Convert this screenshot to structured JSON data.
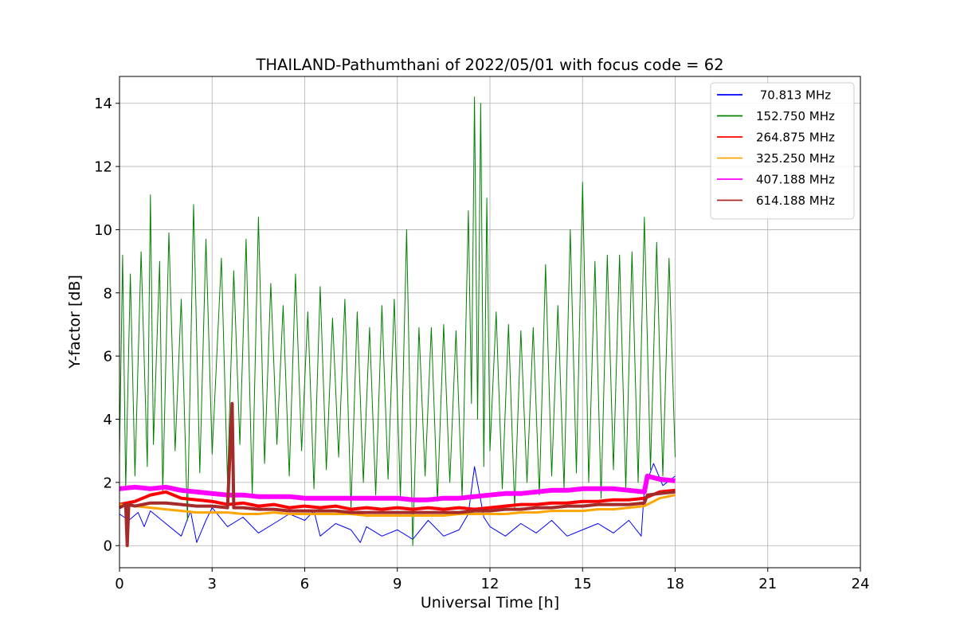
{
  "chart_data": {
    "type": "line",
    "title": "THAILAND-Pathumthani of 2022/05/01 with focus code = 62",
    "xlabel": "Universal Time [h]",
    "ylabel": "Y-factor [dB]",
    "xlim": [
      0,
      24
    ],
    "ylim": [
      -0.7,
      14.85
    ],
    "xticks": [
      0,
      3,
      6,
      9,
      12,
      15,
      18,
      21,
      24
    ],
    "yticks": [
      0,
      2,
      4,
      6,
      8,
      10,
      12,
      14
    ],
    "grid": true,
    "legend_position": "top-right",
    "series": [
      {
        "name": " 70.813 MHz",
        "color": "#0000ff",
        "stroke_width": 1,
        "points": [
          [
            0.0,
            1.0
          ],
          [
            0.3,
            0.8
          ],
          [
            0.6,
            1.05
          ],
          [
            0.8,
            0.6
          ],
          [
            1.0,
            1.1
          ],
          [
            1.5,
            0.7
          ],
          [
            2.0,
            0.3
          ],
          [
            2.3,
            1.1
          ],
          [
            2.5,
            0.1
          ],
          [
            2.8,
            0.8
          ],
          [
            3.0,
            1.2
          ],
          [
            3.5,
            0.6
          ],
          [
            4.0,
            0.9
          ],
          [
            4.5,
            0.4
          ],
          [
            5.0,
            0.7
          ],
          [
            5.5,
            1.0
          ],
          [
            6.0,
            0.8
          ],
          [
            6.3,
            1.1
          ],
          [
            6.5,
            0.3
          ],
          [
            7.0,
            0.7
          ],
          [
            7.5,
            0.5
          ],
          [
            7.8,
            0.1
          ],
          [
            8.0,
            0.6
          ],
          [
            8.5,
            0.3
          ],
          [
            9.0,
            0.5
          ],
          [
            9.5,
            0.2
          ],
          [
            10.0,
            0.8
          ],
          [
            10.5,
            0.3
          ],
          [
            11.0,
            0.5
          ],
          [
            11.3,
            1.0
          ],
          [
            11.5,
            2.5
          ],
          [
            11.8,
            0.9
          ],
          [
            12.0,
            0.6
          ],
          [
            12.5,
            0.3
          ],
          [
            13.0,
            0.7
          ],
          [
            13.5,
            0.4
          ],
          [
            14.0,
            0.8
          ],
          [
            14.5,
            0.3
          ],
          [
            15.0,
            0.5
          ],
          [
            15.5,
            0.7
          ],
          [
            16.0,
            0.4
          ],
          [
            16.5,
            0.8
          ],
          [
            16.9,
            0.3
          ],
          [
            17.0,
            1.8
          ],
          [
            17.3,
            2.6
          ],
          [
            17.6,
            1.9
          ],
          [
            18.0,
            2.2
          ]
        ]
      },
      {
        "name": "152.750 MHz",
        "color": "#008000",
        "stroke_width": 1,
        "points": [
          [
            0.0,
            2.8
          ],
          [
            0.1,
            9.2
          ],
          [
            0.2,
            1.8
          ],
          [
            0.35,
            8.6
          ],
          [
            0.5,
            2.2
          ],
          [
            0.7,
            9.3
          ],
          [
            0.9,
            2.5
          ],
          [
            1.0,
            11.1
          ],
          [
            1.1,
            3.2
          ],
          [
            1.3,
            9.0
          ],
          [
            1.4,
            1.7
          ],
          [
            1.6,
            9.9
          ],
          [
            1.8,
            3.0
          ],
          [
            2.0,
            7.8
          ],
          [
            2.2,
            0.8
          ],
          [
            2.4,
            10.8
          ],
          [
            2.6,
            2.3
          ],
          [
            2.8,
            9.7
          ],
          [
            3.0,
            2.9
          ],
          [
            3.3,
            9.1
          ],
          [
            3.5,
            2.0
          ],
          [
            3.7,
            8.7
          ],
          [
            3.9,
            3.2
          ],
          [
            4.1,
            9.7
          ],
          [
            4.3,
            1.6
          ],
          [
            4.5,
            10.4
          ],
          [
            4.7,
            2.6
          ],
          [
            4.9,
            8.3
          ],
          [
            5.1,
            3.2
          ],
          [
            5.3,
            7.6
          ],
          [
            5.5,
            2.2
          ],
          [
            5.7,
            8.6
          ],
          [
            5.9,
            3.0
          ],
          [
            6.1,
            7.4
          ],
          [
            6.3,
            1.8
          ],
          [
            6.5,
            8.2
          ],
          [
            6.7,
            2.4
          ],
          [
            6.9,
            7.2
          ],
          [
            7.1,
            2.8
          ],
          [
            7.3,
            7.8
          ],
          [
            7.5,
            1.2
          ],
          [
            7.7,
            7.4
          ],
          [
            7.9,
            2.0
          ],
          [
            8.1,
            6.9
          ],
          [
            8.3,
            1.6
          ],
          [
            8.5,
            7.6
          ],
          [
            8.7,
            2.1
          ],
          [
            8.9,
            7.8
          ],
          [
            9.1,
            1.5
          ],
          [
            9.3,
            10.0
          ],
          [
            9.5,
            0.0
          ],
          [
            9.7,
            6.9
          ],
          [
            9.9,
            2.2
          ],
          [
            10.1,
            6.9
          ],
          [
            10.3,
            1.4
          ],
          [
            10.5,
            7.0
          ],
          [
            10.7,
            2.0
          ],
          [
            10.9,
            6.8
          ],
          [
            11.1,
            1.5
          ],
          [
            11.3,
            10.6
          ],
          [
            11.4,
            4.5
          ],
          [
            11.5,
            14.2
          ],
          [
            11.6,
            4.0
          ],
          [
            11.7,
            14.0
          ],
          [
            11.8,
            2.5
          ],
          [
            11.9,
            11.0
          ],
          [
            12.0,
            3.0
          ],
          [
            12.2,
            7.4
          ],
          [
            12.4,
            1.8
          ],
          [
            12.6,
            7.0
          ],
          [
            12.8,
            1.2
          ],
          [
            13.0,
            6.8
          ],
          [
            13.2,
            2.0
          ],
          [
            13.4,
            6.9
          ],
          [
            13.6,
            1.6
          ],
          [
            13.8,
            8.9
          ],
          [
            14.0,
            2.2
          ],
          [
            14.2,
            7.6
          ],
          [
            14.4,
            1.8
          ],
          [
            14.6,
            10.0
          ],
          [
            14.8,
            2.3
          ],
          [
            15.0,
            11.5
          ],
          [
            15.2,
            2.0
          ],
          [
            15.4,
            9.0
          ],
          [
            15.6,
            1.5
          ],
          [
            15.8,
            9.2
          ],
          [
            16.0,
            2.4
          ],
          [
            16.2,
            9.2
          ],
          [
            16.4,
            1.8
          ],
          [
            16.6,
            9.3
          ],
          [
            16.8,
            2.0
          ],
          [
            17.0,
            10.4
          ],
          [
            17.2,
            2.4
          ],
          [
            17.4,
            9.6
          ],
          [
            17.6,
            2.2
          ],
          [
            17.8,
            9.1
          ],
          [
            18.0,
            2.8
          ]
        ]
      },
      {
        "name": "264.875 MHz",
        "color": "#ff0000",
        "stroke_width": 4,
        "points": [
          [
            0.0,
            1.3
          ],
          [
            0.5,
            1.4
          ],
          [
            1.0,
            1.6
          ],
          [
            1.5,
            1.7
          ],
          [
            2.0,
            1.5
          ],
          [
            2.5,
            1.45
          ],
          [
            3.0,
            1.4
          ],
          [
            3.5,
            1.3
          ],
          [
            4.0,
            1.35
          ],
          [
            4.5,
            1.25
          ],
          [
            5.0,
            1.3
          ],
          [
            5.5,
            1.2
          ],
          [
            6.0,
            1.25
          ],
          [
            6.5,
            1.2
          ],
          [
            7.0,
            1.25
          ],
          [
            7.5,
            1.15
          ],
          [
            8.0,
            1.2
          ],
          [
            8.5,
            1.15
          ],
          [
            9.0,
            1.2
          ],
          [
            9.5,
            1.15
          ],
          [
            10.0,
            1.2
          ],
          [
            10.5,
            1.15
          ],
          [
            11.0,
            1.2
          ],
          [
            11.5,
            1.15
          ],
          [
            12.0,
            1.2
          ],
          [
            12.5,
            1.25
          ],
          [
            13.0,
            1.3
          ],
          [
            13.5,
            1.3
          ],
          [
            14.0,
            1.35
          ],
          [
            14.5,
            1.35
          ],
          [
            15.0,
            1.4
          ],
          [
            15.5,
            1.4
          ],
          [
            16.0,
            1.45
          ],
          [
            16.5,
            1.45
          ],
          [
            17.0,
            1.5
          ],
          [
            17.5,
            1.7
          ],
          [
            18.0,
            1.75
          ]
        ]
      },
      {
        "name": "325.250 MHz",
        "color": "#ffa500",
        "stroke_width": 3,
        "points": [
          [
            0.0,
            1.3
          ],
          [
            0.5,
            1.25
          ],
          [
            1.0,
            1.2
          ],
          [
            1.5,
            1.15
          ],
          [
            2.0,
            1.1
          ],
          [
            2.5,
            1.05
          ],
          [
            3.0,
            1.05
          ],
          [
            3.5,
            1.05
          ],
          [
            4.0,
            1.0
          ],
          [
            4.5,
            1.0
          ],
          [
            5.0,
            1.05
          ],
          [
            5.5,
            1.0
          ],
          [
            6.0,
            1.0
          ],
          [
            6.5,
            1.0
          ],
          [
            7.0,
            1.0
          ],
          [
            7.5,
            1.0
          ],
          [
            8.0,
            0.95
          ],
          [
            8.5,
            0.95
          ],
          [
            9.0,
            0.95
          ],
          [
            9.5,
            0.95
          ],
          [
            10.0,
            0.95
          ],
          [
            10.5,
            0.95
          ],
          [
            11.0,
            1.0
          ],
          [
            11.5,
            1.0
          ],
          [
            12.0,
            1.0
          ],
          [
            12.5,
            1.0
          ],
          [
            13.0,
            1.05
          ],
          [
            13.5,
            1.05
          ],
          [
            14.0,
            1.1
          ],
          [
            14.5,
            1.1
          ],
          [
            15.0,
            1.1
          ],
          [
            15.5,
            1.15
          ],
          [
            16.0,
            1.15
          ],
          [
            16.5,
            1.2
          ],
          [
            17.0,
            1.25
          ],
          [
            17.5,
            1.5
          ],
          [
            18.0,
            1.6
          ]
        ]
      },
      {
        "name": "407.188 MHz",
        "color": "#ff00ff",
        "stroke_width": 6,
        "points": [
          [
            0.0,
            1.8
          ],
          [
            0.5,
            1.85
          ],
          [
            1.0,
            1.8
          ],
          [
            1.5,
            1.85
          ],
          [
            2.0,
            1.75
          ],
          [
            2.5,
            1.7
          ],
          [
            3.0,
            1.65
          ],
          [
            3.5,
            1.6
          ],
          [
            4.0,
            1.6
          ],
          [
            4.5,
            1.55
          ],
          [
            5.0,
            1.55
          ],
          [
            5.5,
            1.55
          ],
          [
            6.0,
            1.5
          ],
          [
            6.5,
            1.5
          ],
          [
            7.0,
            1.5
          ],
          [
            7.5,
            1.5
          ],
          [
            8.0,
            1.5
          ],
          [
            8.5,
            1.5
          ],
          [
            9.0,
            1.5
          ],
          [
            9.5,
            1.45
          ],
          [
            10.0,
            1.45
          ],
          [
            10.5,
            1.5
          ],
          [
            11.0,
            1.5
          ],
          [
            11.5,
            1.55
          ],
          [
            12.0,
            1.6
          ],
          [
            12.5,
            1.65
          ],
          [
            13.0,
            1.65
          ],
          [
            13.5,
            1.7
          ],
          [
            14.0,
            1.75
          ],
          [
            14.5,
            1.75
          ],
          [
            15.0,
            1.8
          ],
          [
            15.5,
            1.8
          ],
          [
            16.0,
            1.8
          ],
          [
            16.5,
            1.75
          ],
          [
            17.0,
            1.7
          ],
          [
            17.1,
            2.2
          ],
          [
            17.5,
            2.1
          ],
          [
            18.0,
            2.05
          ]
        ]
      },
      {
        "name": "614.188 MHz",
        "color": "#a52a2a",
        "stroke_width": 4,
        "points": [
          [
            0.0,
            1.2
          ],
          [
            0.2,
            1.3
          ],
          [
            0.25,
            0.0
          ],
          [
            0.3,
            1.3
          ],
          [
            0.5,
            1.25
          ],
          [
            1.0,
            1.35
          ],
          [
            1.5,
            1.35
          ],
          [
            2.0,
            1.3
          ],
          [
            2.5,
            1.25
          ],
          [
            3.0,
            1.25
          ],
          [
            3.5,
            1.2
          ],
          [
            3.65,
            4.5
          ],
          [
            3.7,
            1.2
          ],
          [
            4.0,
            1.2
          ],
          [
            4.5,
            1.15
          ],
          [
            5.0,
            1.15
          ],
          [
            5.5,
            1.1
          ],
          [
            6.0,
            1.1
          ],
          [
            6.5,
            1.1
          ],
          [
            7.0,
            1.1
          ],
          [
            7.5,
            1.05
          ],
          [
            8.0,
            1.05
          ],
          [
            8.5,
            1.05
          ],
          [
            9.0,
            1.05
          ],
          [
            9.5,
            1.05
          ],
          [
            10.0,
            1.05
          ],
          [
            10.5,
            1.05
          ],
          [
            11.0,
            1.05
          ],
          [
            11.5,
            1.1
          ],
          [
            12.0,
            1.1
          ],
          [
            12.5,
            1.15
          ],
          [
            13.0,
            1.15
          ],
          [
            13.5,
            1.2
          ],
          [
            14.0,
            1.2
          ],
          [
            14.5,
            1.25
          ],
          [
            15.0,
            1.25
          ],
          [
            15.5,
            1.3
          ],
          [
            16.0,
            1.3
          ],
          [
            16.5,
            1.3
          ],
          [
            17.0,
            1.35
          ],
          [
            17.1,
            1.6
          ],
          [
            17.5,
            1.65
          ],
          [
            18.0,
            1.7
          ]
        ]
      }
    ]
  }
}
